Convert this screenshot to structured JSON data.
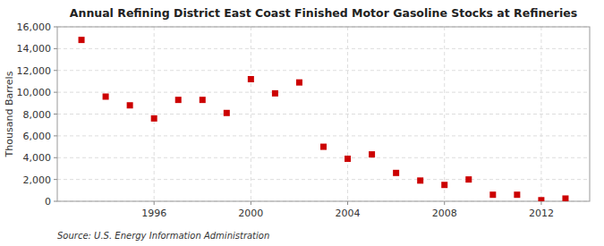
{
  "chart_data": {
    "type": "scatter",
    "title": "Annual Refining District East Coast Finished Motor Gasoline Stocks at Refineries",
    "y_label": "Thousand Barrels",
    "annotations": [
      "Source: U.S. Energy Information Administration"
    ],
    "x": [
      1993,
      1994,
      1995,
      1996,
      1997,
      1998,
      1999,
      2000,
      2001,
      2002,
      2003,
      2004,
      2005,
      2006,
      2007,
      2008,
      2009,
      2010,
      2011,
      2012,
      2013
    ],
    "values": [
      14800,
      9600,
      8800,
      7600,
      9300,
      9300,
      8100,
      11200,
      9900,
      10900,
      5000,
      3900,
      4300,
      2600,
      1900,
      1500,
      2000,
      600,
      600,
      100,
      250
    ],
    "color": "#cc0000",
    "marker": "square",
    "xlim": [
      1992,
      2014
    ],
    "xticks": [
      1996,
      2000,
      2004,
      2008,
      2012
    ],
    "ylim": [
      0,
      16000
    ],
    "yticks": [
      0,
      {
        "value": 2000,
        "label": "2,000"
      },
      {
        "value": 4000,
        "label": "4,000"
      },
      {
        "value": 6000,
        "label": "6,000"
      },
      {
        "value": 8000,
        "label": "8,000"
      },
      {
        "value": 10000,
        "label": "10,000"
      },
      {
        "value": 12000,
        "label": "12,000"
      },
      {
        "value": 14000,
        "label": "14,000"
      },
      {
        "value": 16000,
        "label": "16,000"
      }
    ],
    "grid": true
  }
}
